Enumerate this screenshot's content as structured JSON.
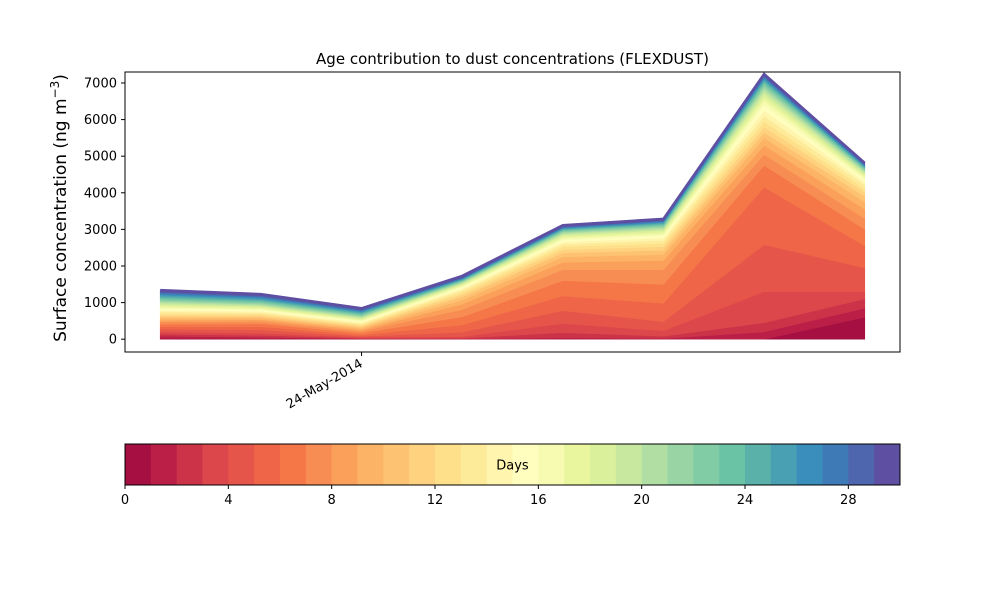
{
  "chart_data": {
    "type": "area",
    "title": "Age contribution to dust concentrations (FLEXDUST)",
    "xlabel": "",
    "ylabel": "Surface concentration (ng m",
    "ylabel_superscript": "−3",
    "ylabel_suffix": ")",
    "ylim": [
      -350,
      7300
    ],
    "yticks": [
      0,
      1000,
      2000,
      3000,
      4000,
      5000,
      6000,
      7000
    ],
    "ytick_labels": [
      "0",
      "1000",
      "2000",
      "3000",
      "4000",
      "5000",
      "6000",
      "7000"
    ],
    "x_index_range": [
      -0.35,
      7.35
    ],
    "x": [
      0,
      1,
      2,
      3,
      4,
      5,
      6,
      7
    ],
    "xticks": [
      2
    ],
    "xtick_labels": [
      "24-May-2014"
    ],
    "grid": false,
    "stacked": true,
    "series_note": "Stacked by age in days (layer k = age k..k+1 days)",
    "series": [
      {
        "name": "0",
        "values": [
          20,
          15,
          5,
          0,
          0,
          0,
          0,
          600
        ]
      },
      {
        "name": "1",
        "values": [
          60,
          40,
          10,
          10,
          40,
          20,
          200,
          250
        ]
      },
      {
        "name": "2",
        "values": [
          60,
          50,
          15,
          20,
          140,
          60,
          250,
          250
        ]
      },
      {
        "name": "3",
        "values": [
          60,
          60,
          20,
          40,
          250,
          150,
          850,
          200
        ]
      },
      {
        "name": "4",
        "values": [
          70,
          90,
          30,
          120,
          350,
          250,
          1280,
          650
        ]
      },
      {
        "name": "5",
        "values": [
          70,
          90,
          40,
          200,
          400,
          500,
          1570,
          600
        ]
      },
      {
        "name": "6",
        "values": [
          70,
          80,
          50,
          220,
          420,
          520,
          600,
          450
        ]
      },
      {
        "name": "7",
        "values": [
          60,
          60,
          50,
          200,
          300,
          400,
          300,
          300
        ]
      },
      {
        "name": "8",
        "values": [
          50,
          50,
          40,
          150,
          200,
          250,
          250,
          250
        ]
      },
      {
        "name": "9",
        "values": [
          50,
          40,
          40,
          110,
          150,
          160,
          200,
          200
        ]
      },
      {
        "name": "10",
        "values": [
          45,
          40,
          35,
          90,
          110,
          120,
          150,
          150
        ]
      },
      {
        "name": "11",
        "values": [
          45,
          40,
          35,
          70,
          90,
          100,
          150,
          120
        ]
      },
      {
        "name": "12",
        "values": [
          45,
          40,
          30,
          60,
          80,
          90,
          150,
          100
        ]
      },
      {
        "name": "13",
        "values": [
          45,
          35,
          30,
          50,
          70,
          80,
          150,
          100
        ]
      },
      {
        "name": "14",
        "values": [
          45,
          35,
          30,
          45,
          60,
          70,
          150,
          80
        ]
      },
      {
        "name": "15",
        "values": [
          40,
          35,
          30,
          40,
          55,
          60,
          150,
          70
        ]
      },
      {
        "name": "16",
        "values": [
          40,
          35,
          30,
          35,
          50,
          55,
          120,
          60
        ]
      },
      {
        "name": "17",
        "values": [
          40,
          35,
          30,
          30,
          45,
          50,
          100,
          50
        ]
      },
      {
        "name": "18",
        "values": [
          40,
          30,
          25,
          25,
          40,
          45,
          90,
          45
        ]
      },
      {
        "name": "19",
        "values": [
          40,
          30,
          25,
          25,
          35,
          40,
          80,
          40
        ]
      },
      {
        "name": "20",
        "values": [
          35,
          30,
          25,
          20,
          30,
          35,
          70,
          35
        ]
      },
      {
        "name": "21",
        "values": [
          35,
          30,
          25,
          20,
          28,
          32,
          60,
          30
        ]
      },
      {
        "name": "22",
        "values": [
          35,
          30,
          25,
          18,
          25,
          30,
          55,
          28
        ]
      },
      {
        "name": "23",
        "values": [
          35,
          30,
          25,
          17,
          22,
          27,
          50,
          25
        ]
      },
      {
        "name": "24",
        "values": [
          35,
          30,
          25,
          16,
          20,
          25,
          45,
          22
        ]
      },
      {
        "name": "25",
        "values": [
          35,
          30,
          25,
          15,
          18,
          22,
          40,
          20
        ]
      },
      {
        "name": "26",
        "values": [
          30,
          30,
          20,
          14,
          17,
          20,
          35,
          20
        ]
      },
      {
        "name": "27",
        "values": [
          30,
          25,
          20,
          13,
          16,
          18,
          30,
          18
        ]
      },
      {
        "name": "28",
        "values": [
          30,
          25,
          20,
          12,
          15,
          17,
          30,
          16
        ]
      },
      {
        "name": "29",
        "values": [
          45,
          40,
          35,
          44,
          39,
          42,
          40,
          36
        ]
      }
    ],
    "colorbar": {
      "label": "Days",
      "orientation": "horizontal",
      "placement": "bottom",
      "range": [
        0,
        30
      ],
      "ticks": [
        0,
        4,
        8,
        12,
        16,
        20,
        24,
        28
      ],
      "tick_labels": [
        "0",
        "4",
        "8",
        "12",
        "16",
        "20",
        "24",
        "28"
      ],
      "colormap": "Spectral",
      "colors": [
        "#a50f42",
        "#bb1f47",
        "#cc3349",
        "#dc474b",
        "#e6554a",
        "#ee6548",
        "#f57748",
        "#f88d53",
        "#faa05b",
        "#fdb365",
        "#fdc272",
        "#fed27f",
        "#fee08b",
        "#feeb9a",
        "#fff5ae",
        "#fffebe",
        "#f7fbb2",
        "#eaf69e",
        "#dbf09a",
        "#c7e89e",
        "#b1dfa3",
        "#99d5a4",
        "#81cba5",
        "#6bc3a5",
        "#5ab1a9",
        "#4aa0b3",
        "#3a8ebc",
        "#3e7bb6",
        "#4d66ad",
        "#5e4fa2"
      ]
    }
  }
}
